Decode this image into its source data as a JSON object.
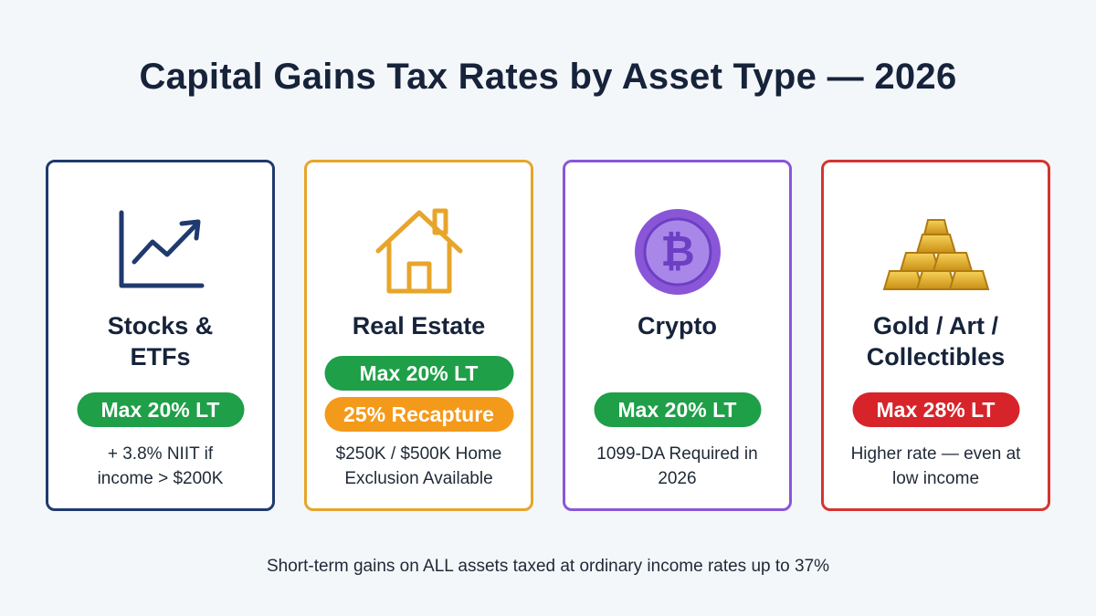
{
  "title": "Capital Gains Tax Rates by Asset Type — 2026",
  "colors": {
    "navy": "#1f3a6e",
    "gold": "#e7a52b",
    "purple": "#8a56d8",
    "red": "#d6342f",
    "green_pill": "#1e9f48",
    "orange_pill": "#f39a1b",
    "red_pill": "#d6242a"
  },
  "cards": [
    {
      "title": "Stocks & ETFs",
      "icon": "trending-chart-icon",
      "pills": [
        "Max 20% LT"
      ],
      "note": "+ 3.8% NIIT if income > $200K"
    },
    {
      "title": "Real Estate",
      "icon": "house-icon",
      "pills": [
        "Max 20% LT",
        "25% Recapture"
      ],
      "note": "$250K / $500K Home Exclusion Available"
    },
    {
      "title": "Crypto",
      "icon": "bitcoin-icon",
      "pills": [
        "Max 20% LT"
      ],
      "note": "1099-DA Required in 2026"
    },
    {
      "title": "Gold / Art / Collectibles",
      "icon": "gold-bars-icon",
      "pills": [
        "Max 28% LT"
      ],
      "note": "Higher rate — even at low income"
    }
  ],
  "footer": "Short-term gains on ALL assets taxed at ordinary income rates up to 37%"
}
